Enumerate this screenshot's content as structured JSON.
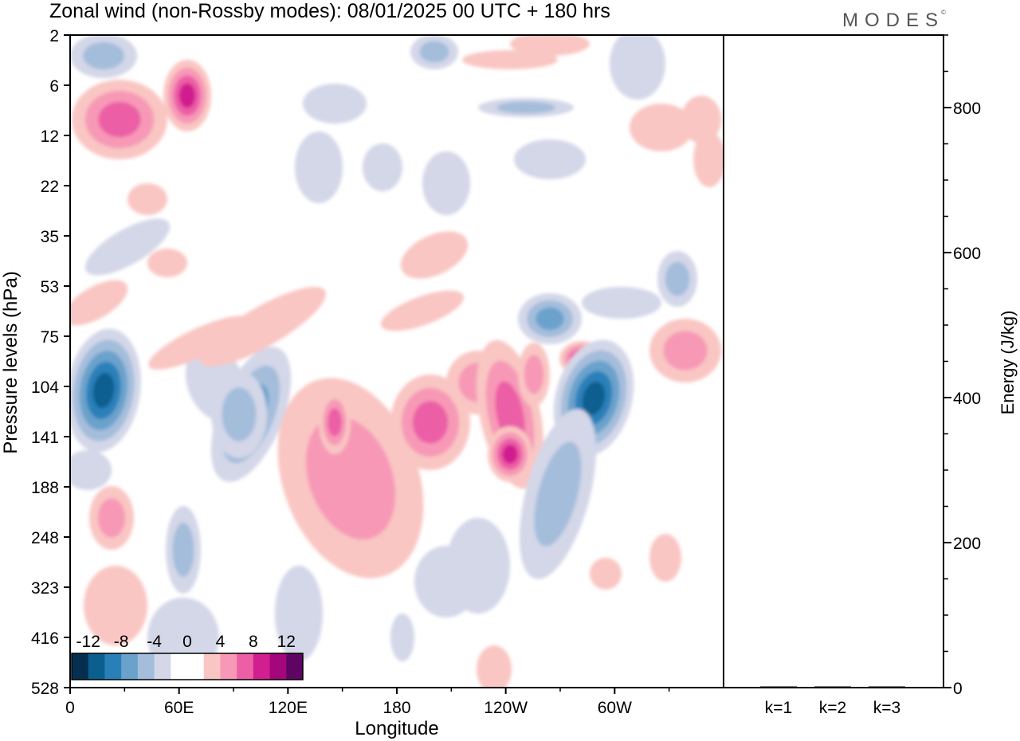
{
  "title": "Zonal wind (non-Rossby modes):  08/01/2025  00 UTC  + 180 hrs",
  "brand": "MODES",
  "brand_mark": "©",
  "chart_data": [
    {
      "type": "heatmap",
      "xlabel": "Longitude",
      "ylabel": "Pressure levels (hPa)",
      "x_ticks": [
        "0",
        "60E",
        "120E",
        "180",
        "120W",
        "60W"
      ],
      "x_tick_values": [
        0,
        60,
        120,
        180,
        240,
        300
      ],
      "xlim": [
        0,
        360
      ],
      "y_ticks": [
        "2",
        "6",
        "12",
        "22",
        "35",
        "53",
        "75",
        "104",
        "141",
        "188",
        "248",
        "323",
        "416",
        "528"
      ],
      "y_scale": "pressure levels (top to bottom)",
      "colorbar": {
        "labels": [
          "-12",
          "-8",
          "-4",
          "0",
          "4",
          "8",
          "12"
        ],
        "colors": [
          "#062f4f",
          "#0b5f8f",
          "#2980b9",
          "#6aa2cc",
          "#a4bddb",
          "#d3d7e8",
          "#ffffff",
          "#ffffff",
          "#f9c6c3",
          "#f799b6",
          "#ec5fa6",
          "#d11f8f",
          "#a3077b",
          "#5e0563"
        ]
      },
      "features": [
        {
          "sign": "negative",
          "lon": 14,
          "level": "104-141",
          "peak": -14
        },
        {
          "sign": "positive",
          "lon": 63,
          "level": "6",
          "peak": 10
        },
        {
          "sign": "positive",
          "lon": 15,
          "level": "12-22",
          "peak": 8
        },
        {
          "sign": "negative",
          "lon": 93,
          "level": "104-188",
          "peak": -8
        },
        {
          "sign": "positive",
          "lon": 144,
          "level": "104-141",
          "peak": 6
        },
        {
          "sign": "positive",
          "lon": 218,
          "level": "104-141",
          "peak": 6
        },
        {
          "sign": "positive",
          "lon": 240,
          "level": "104-141",
          "peak": 8
        },
        {
          "sign": "positive",
          "lon": 276,
          "level": "75-104",
          "peak": 10
        },
        {
          "sign": "negative",
          "lon": 273,
          "level": "75",
          "peak": -8
        },
        {
          "sign": "negative",
          "lon": 284,
          "level": "104-141",
          "peak": -14
        },
        {
          "sign": "positive",
          "lon": 350,
          "level": "75-104",
          "peak": 6
        }
      ]
    },
    {
      "type": "bar",
      "categories": [
        "k=1",
        "k=2",
        "k=3"
      ],
      "values": [
        0,
        0,
        0
      ],
      "ylabel": "Energy (J/kg)",
      "ylim": [
        0,
        900
      ],
      "y_ticks": [
        0,
        200,
        400,
        600,
        800
      ]
    }
  ]
}
